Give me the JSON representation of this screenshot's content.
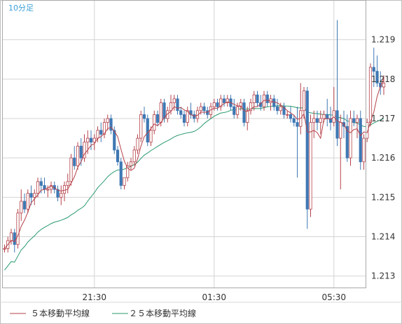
{
  "title": "10分足",
  "chart_data": {
    "type": "candlestick",
    "title": "10分足",
    "ylim": [
      1.2127,
      1.22
    ],
    "y_ticks": [
      "1.219",
      "1.218",
      "1.217",
      "1.216",
      "1.215",
      "1.214",
      "1.213"
    ],
    "x_ticks": [
      {
        "label": "21:30",
        "index": 27
      },
      {
        "label": "01:30",
        "index": 63
      },
      {
        "label": "05:30",
        "index": 99
      }
    ],
    "grid": true,
    "legend": "bottom",
    "series": [
      {
        "name": "５本移動平均線",
        "color": "#b5424a"
      },
      {
        "name": "２５本移動平均線",
        "color": "#2a9a6e"
      }
    ],
    "colors": {
      "up": "#b5424a",
      "down": "#3f78b4",
      "ma5": "#b5424a",
      "ma25": "#2a9a6e",
      "grid": "#d4d4d4",
      "title": "#3aa0d8"
    },
    "candles": [
      [
        1.2137,
        1.2138,
        1.2136,
        1.2137
      ],
      [
        1.2137,
        1.214,
        1.2136,
        1.2139
      ],
      [
        1.2139,
        1.2142,
        1.2138,
        1.2141
      ],
      [
        1.2141,
        1.2142,
        1.2136,
        1.2138
      ],
      [
        1.2138,
        1.2147,
        1.2137,
        1.2146
      ],
      [
        1.2146,
        1.2152,
        1.2144,
        1.2149
      ],
      [
        1.2149,
        1.2151,
        1.2146,
        1.2147
      ],
      [
        1.2147,
        1.2152,
        1.2146,
        1.2151
      ],
      [
        1.2151,
        1.2153,
        1.2148,
        1.215
      ],
      [
        1.215,
        1.2152,
        1.2148,
        1.2151
      ],
      [
        1.2151,
        1.2155,
        1.215,
        1.2154
      ],
      [
        1.2154,
        1.2155,
        1.2151,
        1.2153
      ],
      [
        1.2153,
        1.2155,
        1.2151,
        1.2152
      ],
      [
        1.2152,
        1.2153,
        1.215,
        1.2152
      ],
      [
        1.2152,
        1.2154,
        1.2151,
        1.2153
      ],
      [
        1.2153,
        1.2154,
        1.2151,
        1.2152
      ],
      [
        1.2152,
        1.2153,
        1.2149,
        1.215
      ],
      [
        1.215,
        1.2153,
        1.2148,
        1.2151
      ],
      [
        1.2151,
        1.2154,
        1.2149,
        1.2153
      ],
      [
        1.2153,
        1.2156,
        1.2151,
        1.2154
      ],
      [
        1.2154,
        1.2161,
        1.2153,
        1.216
      ],
      [
        1.216,
        1.2163,
        1.2157,
        1.2158
      ],
      [
        1.2158,
        1.2164,
        1.2157,
        1.2163
      ],
      [
        1.2163,
        1.2165,
        1.2158,
        1.216
      ],
      [
        1.216,
        1.2166,
        1.2159,
        1.2164
      ],
      [
        1.2164,
        1.2167,
        1.2161,
        1.2165
      ],
      [
        1.2165,
        1.2167,
        1.2162,
        1.2164
      ],
      [
        1.2164,
        1.2166,
        1.2162,
        1.2165
      ],
      [
        1.2165,
        1.2168,
        1.2164,
        1.2167
      ],
      [
        1.2167,
        1.2169,
        1.2164,
        1.2166
      ],
      [
        1.2166,
        1.217,
        1.2165,
        1.2169
      ],
      [
        1.2169,
        1.2171,
        1.2167,
        1.217
      ],
      [
        1.217,
        1.2171,
        1.2166,
        1.2167
      ],
      [
        1.2167,
        1.2168,
        1.2161,
        1.2162
      ],
      [
        1.2162,
        1.2163,
        1.2158,
        1.2159
      ],
      [
        1.2159,
        1.216,
        1.2152,
        1.2153
      ],
      [
        1.2153,
        1.2155,
        1.2152,
        1.2155
      ],
      [
        1.2155,
        1.2159,
        1.2154,
        1.2158
      ],
      [
        1.2158,
        1.216,
        1.2157,
        1.2159
      ],
      [
        1.2159,
        1.2163,
        1.2158,
        1.2162
      ],
      [
        1.2162,
        1.2166,
        1.2161,
        1.2165
      ],
      [
        1.2165,
        1.2172,
        1.2164,
        1.2171
      ],
      [
        1.2171,
        1.2173,
        1.2169,
        1.217
      ],
      [
        1.217,
        1.2171,
        1.2163,
        1.2164
      ],
      [
        1.2164,
        1.2168,
        1.2163,
        1.2167
      ],
      [
        1.2167,
        1.2172,
        1.2166,
        1.2171
      ],
      [
        1.2171,
        1.2172,
        1.2168,
        1.2169
      ],
      [
        1.2169,
        1.2175,
        1.2168,
        1.2174
      ],
      [
        1.2174,
        1.2175,
        1.2169,
        1.217
      ],
      [
        1.217,
        1.2173,
        1.2169,
        1.2172
      ],
      [
        1.2172,
        1.2176,
        1.2171,
        1.2174
      ],
      [
        1.2174,
        1.2176,
        1.2172,
        1.2175
      ],
      [
        1.2175,
        1.2176,
        1.2171,
        1.2172
      ],
      [
        1.2172,
        1.2173,
        1.217,
        1.2171
      ],
      [
        1.2171,
        1.2172,
        1.2168,
        1.2169
      ],
      [
        1.2169,
        1.2173,
        1.2168,
        1.2172
      ],
      [
        1.2172,
        1.2174,
        1.217,
        1.2171
      ],
      [
        1.2171,
        1.2172,
        1.2169,
        1.217
      ],
      [
        1.217,
        1.2173,
        1.2169,
        1.2172
      ],
      [
        1.2172,
        1.2174,
        1.2171,
        1.2173
      ],
      [
        1.2173,
        1.2174,
        1.2171,
        1.2172
      ],
      [
        1.2172,
        1.2173,
        1.217,
        1.2171
      ],
      [
        1.2171,
        1.2174,
        1.217,
        1.2173
      ],
      [
        1.2173,
        1.2175,
        1.2172,
        1.2174
      ],
      [
        1.2174,
        1.2175,
        1.2172,
        1.2173
      ],
      [
        1.2173,
        1.2176,
        1.2172,
        1.2175
      ],
      [
        1.2175,
        1.2176,
        1.2173,
        1.2174
      ],
      [
        1.2174,
        1.2176,
        1.2173,
        1.2175
      ],
      [
        1.2175,
        1.2176,
        1.2172,
        1.2173
      ],
      [
        1.2173,
        1.2175,
        1.217,
        1.2171
      ],
      [
        1.2171,
        1.2174,
        1.217,
        1.2173
      ],
      [
        1.2173,
        1.2175,
        1.2172,
        1.2174
      ],
      [
        1.2174,
        1.2175,
        1.2168,
        1.2169
      ],
      [
        1.2169,
        1.2173,
        1.2167,
        1.2172
      ],
      [
        1.2172,
        1.2175,
        1.2171,
        1.2174
      ],
      [
        1.2174,
        1.2177,
        1.2172,
        1.2176
      ],
      [
        1.2176,
        1.2177,
        1.2173,
        1.2174
      ],
      [
        1.2174,
        1.2176,
        1.2172,
        1.2173
      ],
      [
        1.2173,
        1.2177,
        1.2172,
        1.2176
      ],
      [
        1.2176,
        1.2177,
        1.2173,
        1.2174
      ],
      [
        1.2174,
        1.2176,
        1.2172,
        1.2175
      ],
      [
        1.2175,
        1.2176,
        1.2172,
        1.2173
      ],
      [
        1.2173,
        1.2175,
        1.2171,
        1.2172
      ],
      [
        1.2172,
        1.2174,
        1.2171,
        1.2173
      ],
      [
        1.2173,
        1.2174,
        1.217,
        1.2171
      ],
      [
        1.2171,
        1.2172,
        1.217,
        1.2171
      ],
      [
        1.2171,
        1.2173,
        1.2169,
        1.217
      ],
      [
        1.217,
        1.2171,
        1.2168,
        1.2169
      ],
      [
        1.2169,
        1.2173,
        1.2155,
        1.2168
      ],
      [
        1.2168,
        1.2179,
        1.2166,
        1.2172
      ],
      [
        1.2172,
        1.2178,
        1.217,
        1.2177
      ],
      [
        1.2177,
        1.2178,
        1.2142,
        1.2147
      ],
      [
        1.2147,
        1.2171,
        1.2145,
        1.2169
      ],
      [
        1.2169,
        1.2172,
        1.2165,
        1.217
      ],
      [
        1.217,
        1.2172,
        1.2167,
        1.2169
      ],
      [
        1.2169,
        1.2172,
        1.2166,
        1.217
      ],
      [
        1.217,
        1.2172,
        1.2169,
        1.2171
      ],
      [
        1.2171,
        1.2175,
        1.2168,
        1.217
      ],
      [
        1.217,
        1.2173,
        1.2167,
        1.2169
      ],
      [
        1.2169,
        1.2178,
        1.2168,
        1.2172
      ],
      [
        1.2172,
        1.2195,
        1.2163,
        1.2165
      ],
      [
        1.2165,
        1.2171,
        1.2152,
        1.2169
      ],
      [
        1.2169,
        1.2172,
        1.2165,
        1.2168
      ],
      [
        1.2168,
        1.2171,
        1.2159,
        1.216
      ],
      [
        1.216,
        1.2172,
        1.2158,
        1.217
      ],
      [
        1.217,
        1.2172,
        1.2168,
        1.2169
      ],
      [
        1.2169,
        1.2171,
        1.2165,
        1.217
      ],
      [
        1.217,
        1.2172,
        1.2157,
        1.2159
      ],
      [
        1.2159,
        1.2166,
        1.2157,
        1.2165
      ],
      [
        1.2165,
        1.217,
        1.2164,
        1.2169
      ],
      [
        1.2169,
        1.2184,
        1.2168,
        1.2183
      ],
      [
        1.2183,
        1.2188,
        1.2178,
        1.2182
      ],
      [
        1.2182,
        1.2186,
        1.2178,
        1.2179
      ],
      [
        1.2179,
        1.2182,
        1.2176,
        1.2178
      ],
      [
        1.2178,
        1.2181,
        1.2176,
        1.2179
      ]
    ]
  }
}
